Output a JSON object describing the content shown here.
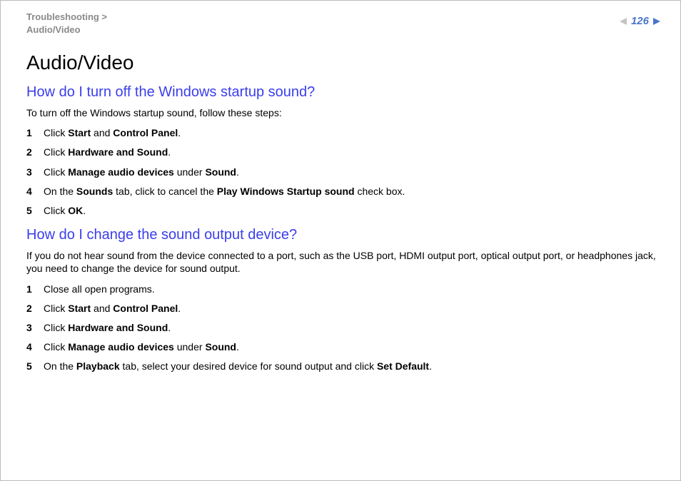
{
  "breadcrumb": {
    "line1": "Troubleshooting >",
    "line2": "Audio/Video"
  },
  "page_number": "126",
  "colors": {
    "link_blue": "#3a3eeb",
    "page_blue": "#4b74c9",
    "grey": "#8a8a8a",
    "arrow_grey": "#c4c4c4"
  },
  "main_title": "Audio/Video",
  "sections": [
    {
      "heading": "How do I turn off the Windows startup sound?",
      "intro": "To turn off the Windows startup sound, follow these steps:",
      "steps": [
        {
          "n": "1",
          "parts": [
            [
              "",
              "Click "
            ],
            [
              "b",
              "Start"
            ],
            [
              "",
              " and "
            ],
            [
              "b",
              "Control Panel"
            ],
            [
              "",
              "."
            ]
          ]
        },
        {
          "n": "2",
          "parts": [
            [
              "",
              "Click "
            ],
            [
              "b",
              "Hardware and Sound"
            ],
            [
              "",
              "."
            ]
          ]
        },
        {
          "n": "3",
          "parts": [
            [
              "",
              "Click "
            ],
            [
              "b",
              "Manage audio devices"
            ],
            [
              "",
              " under "
            ],
            [
              "b",
              "Sound"
            ],
            [
              "",
              "."
            ]
          ]
        },
        {
          "n": "4",
          "parts": [
            [
              "",
              "On the "
            ],
            [
              "b",
              "Sounds"
            ],
            [
              "",
              " tab, click to cancel the "
            ],
            [
              "b",
              "Play Windows Startup sound"
            ],
            [
              "",
              " check box."
            ]
          ]
        },
        {
          "n": "5",
          "parts": [
            [
              "",
              "Click "
            ],
            [
              "b",
              "OK"
            ],
            [
              "",
              "."
            ]
          ]
        }
      ]
    },
    {
      "heading": "How do I change the sound output device?",
      "intro": "If you do not hear sound from the device connected to a port, such as the USB port, HDMI output port, optical output port, or headphones jack, you need to change the device for sound output.",
      "steps": [
        {
          "n": "1",
          "parts": [
            [
              "",
              "Close all open programs."
            ]
          ]
        },
        {
          "n": "2",
          "parts": [
            [
              "",
              "Click "
            ],
            [
              "b",
              "Start"
            ],
            [
              "",
              " and "
            ],
            [
              "b",
              "Control Panel"
            ],
            [
              "",
              "."
            ]
          ]
        },
        {
          "n": "3",
          "parts": [
            [
              "",
              "Click "
            ],
            [
              "b",
              "Hardware and Sound"
            ],
            [
              "",
              "."
            ]
          ]
        },
        {
          "n": "4",
          "parts": [
            [
              "",
              "Click "
            ],
            [
              "b",
              "Manage audio devices"
            ],
            [
              "",
              " under "
            ],
            [
              "b",
              "Sound"
            ],
            [
              "",
              "."
            ]
          ]
        },
        {
          "n": "5",
          "parts": [
            [
              "",
              "On the "
            ],
            [
              "b",
              "Playback"
            ],
            [
              "",
              " tab, select your desired device for sound output and click "
            ],
            [
              "b",
              "Set Default"
            ],
            [
              "",
              "."
            ]
          ]
        }
      ]
    }
  ]
}
